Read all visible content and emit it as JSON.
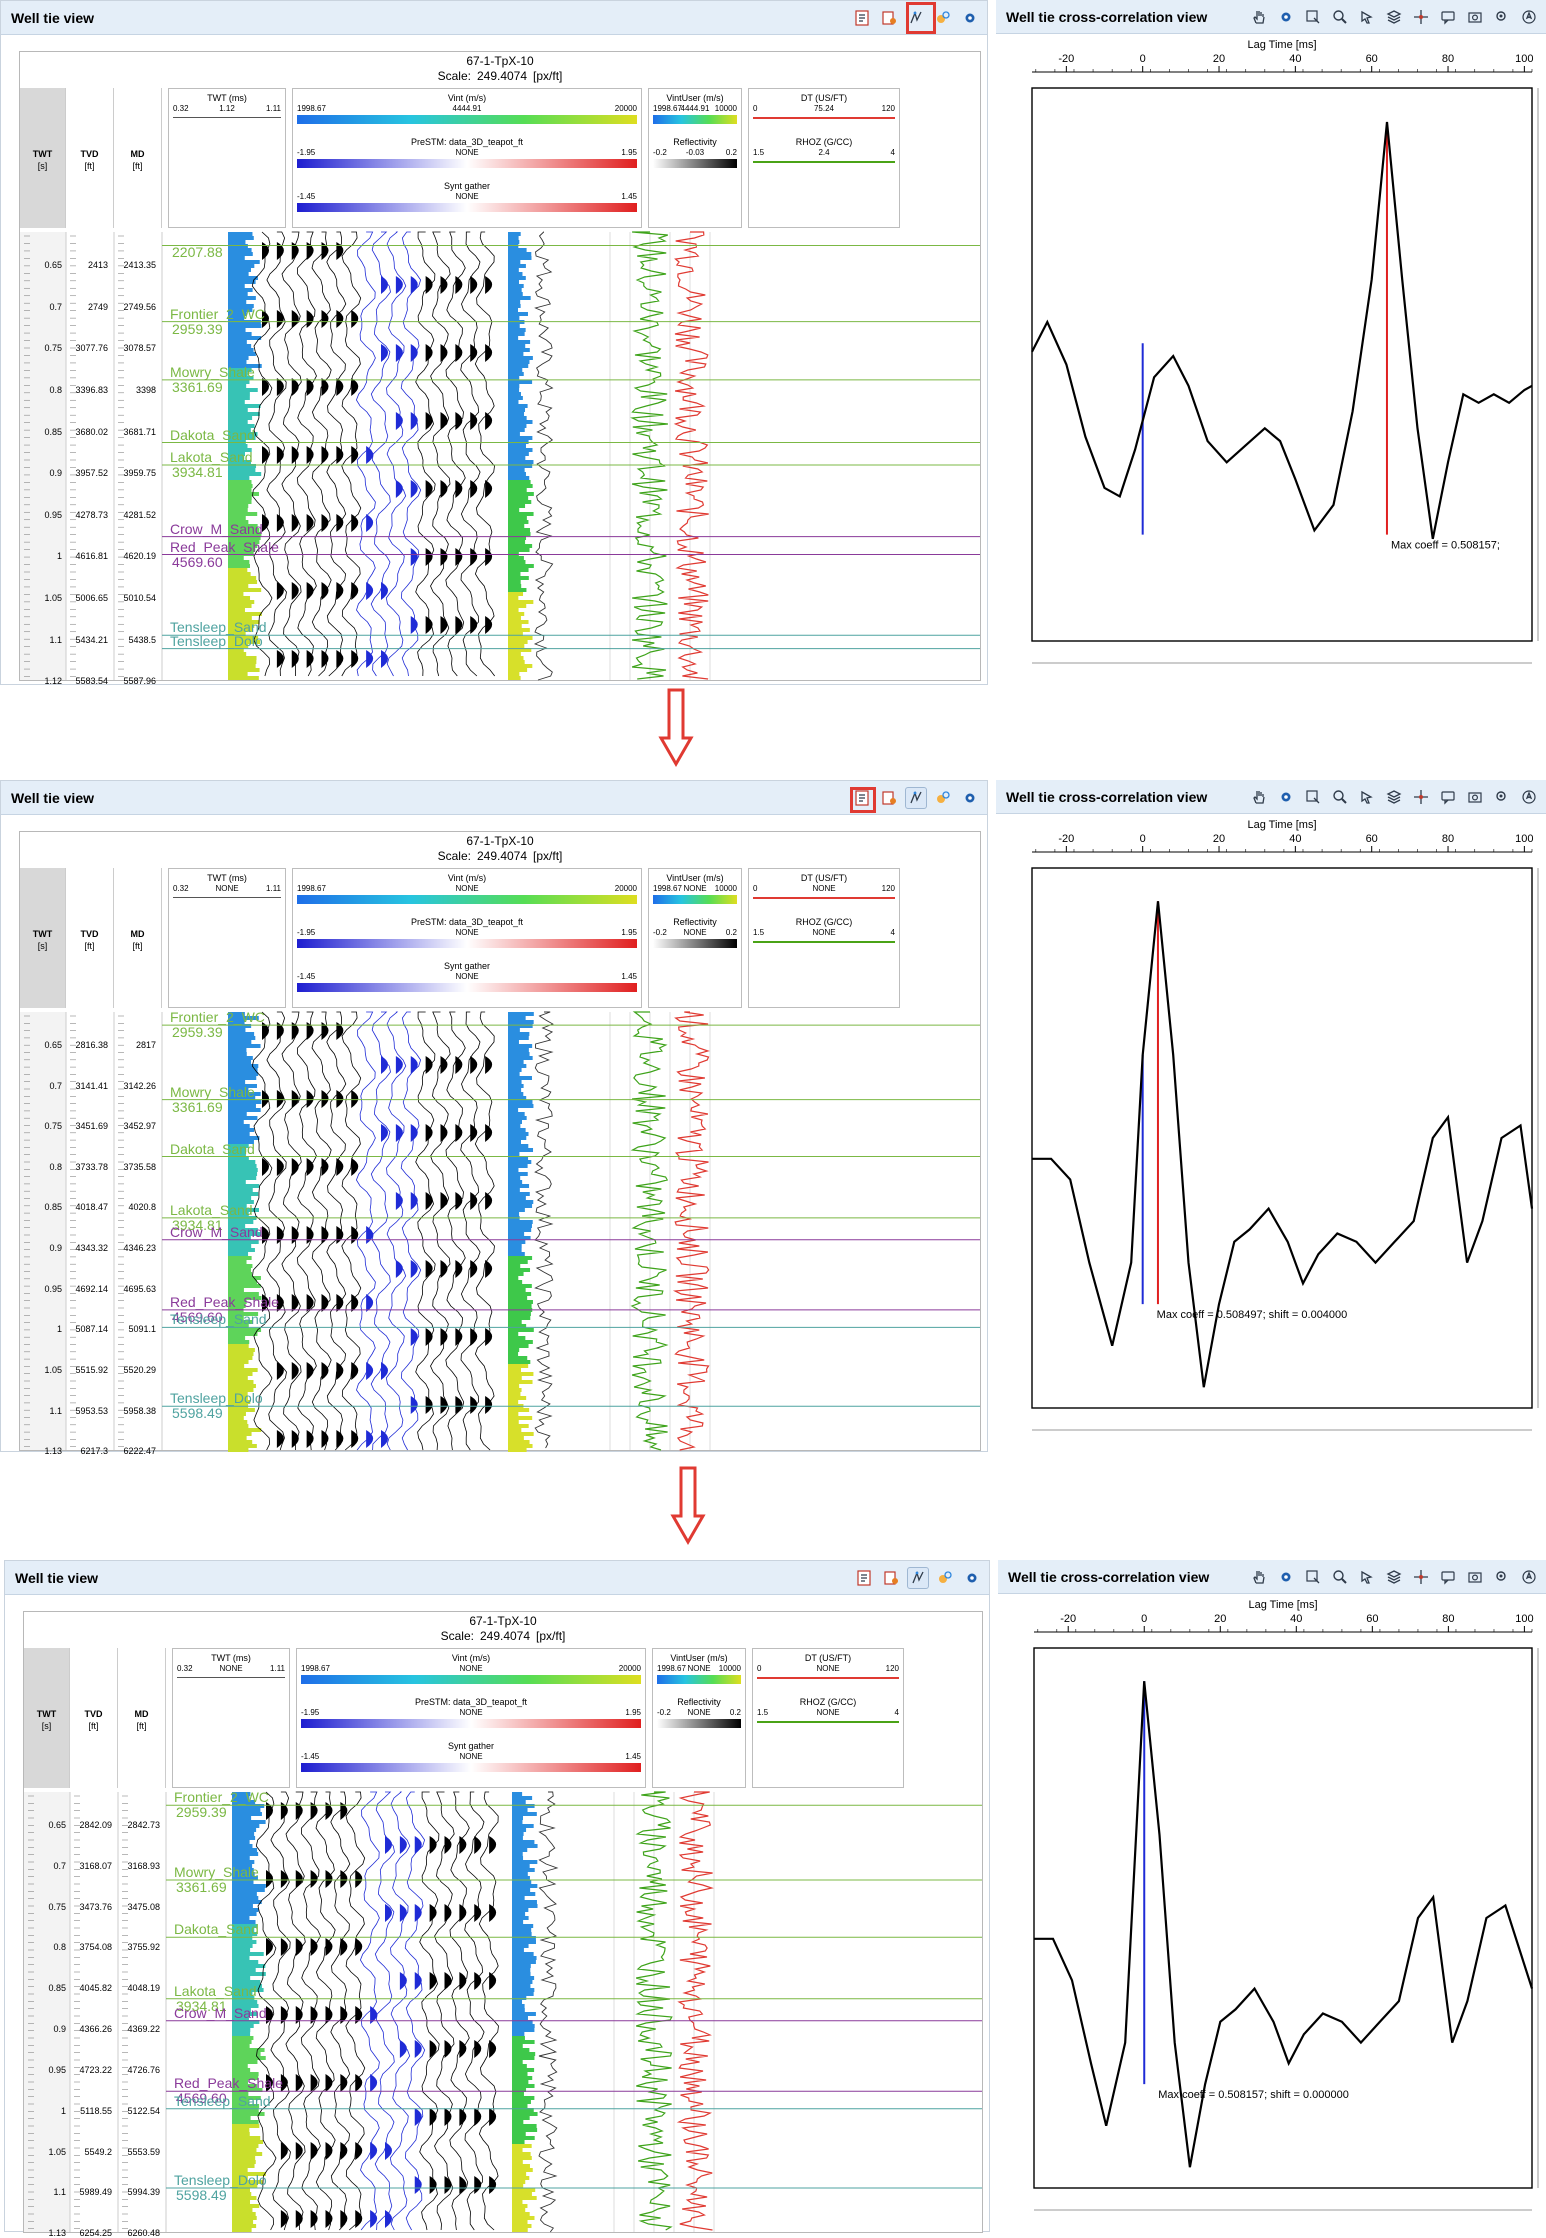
{
  "colors": {
    "accent": "#e03a32",
    "header_bg": "#e4eef8",
    "marker_green": "#7bb844",
    "marker_purple": "#8a3a9a",
    "marker_teal": "#4fa3a0",
    "cc_curve": "#000000",
    "cc_zero_line": "#1f2bd6",
    "cc_max_line": "#e02020"
  },
  "icons": {
    "toolbar_left": [
      "report-icon",
      "export-icon",
      "correlation-tool-icon",
      "match-icon",
      "settings-gear-icon"
    ],
    "toolbar_right": [
      "pan-hand-icon",
      "settings-gear-icon",
      "zoom-box-icon",
      "zoom-icon",
      "pointer-icon",
      "layers-icon",
      "crosshair-icon",
      "comment-icon",
      "snapshot-icon",
      "search-icon",
      "compass-icon"
    ]
  },
  "well_tie": {
    "title": "Well tie view",
    "well_name": "67-1-TpX-10",
    "scale_label": "Scale:",
    "scale_value": "249.4074",
    "scale_unit": "[px/ft]",
    "axis_headers": {
      "twt": [
        "TWT",
        "[s]"
      ],
      "tvd": [
        "TVD",
        "[ft]"
      ],
      "md": [
        "MD",
        "[ft]"
      ]
    },
    "tracks": {
      "twt_track": {
        "name": "TWT (ms)",
        "min": "0.32",
        "max": "1.11"
      },
      "vint": {
        "name": "Vint (m/s)",
        "min": "1998.67",
        "max": "20000"
      },
      "prestm": {
        "name": "PreSTM: data_3D_teapot_ft",
        "mid": "NONE",
        "min": "-1.95",
        "max": "1.95"
      },
      "synt": {
        "name": "Synt gather",
        "mid": "NONE",
        "min": "-1.45",
        "max": "1.45"
      },
      "vintuser": {
        "name": "VintUser (m/s)",
        "min": "1998.67",
        "max": "10000"
      },
      "reflectivity": {
        "name": "Reflectivity",
        "min": "-0.2",
        "max": "0.2"
      },
      "dt": {
        "name": "DT (US/FT)",
        "min": "0",
        "max": "120"
      },
      "rhoz": {
        "name": "RHOZ (G/CC)",
        "min": "1.5",
        "max": "4"
      }
    }
  },
  "cross_correlation": {
    "title": "Well tie cross-correlation view",
    "x_axis_label": "Lag Time [ms]",
    "x_ticks": [
      "-20",
      "0",
      "20",
      "40",
      "60",
      "80",
      "100"
    ],
    "x_tick_values": [
      -20,
      0,
      20,
      40,
      60,
      80,
      100
    ],
    "x_range": [
      -29,
      102
    ]
  },
  "steps": [
    {
      "twt_mid": "1.12",
      "vint_mid": "4444.91",
      "vintuser_mid": "4444.91",
      "refl_mid": "-0.03",
      "dt_mid": "75.24",
      "rhoz_mid": "2.4",
      "twt_labels": [
        "0.65",
        "0.7",
        "0.75",
        "0.8",
        "0.85",
        "0.9",
        "0.95",
        "1",
        "1.05",
        "1.1",
        "1.12"
      ],
      "tvd_labels": [
        "2413",
        "2749",
        "3077.76",
        "3396.83",
        "3680.02",
        "3957.52",
        "4278.73",
        "4616.81",
        "5006.65",
        "5434.21",
        "5583.54"
      ],
      "md_labels": [
        "2413.35",
        "2749.56",
        "3078.57",
        "3398",
        "3681.71",
        "3959.75",
        "4281.52",
        "4620.19",
        "5010.54",
        "5438.5",
        "5587.96"
      ],
      "markers": [
        {
          "name": "",
          "depth": "2207.88",
          "kind": "green"
        },
        {
          "name": "Frontier_2_WC",
          "depth": "2959.39",
          "kind": "green"
        },
        {
          "name": "Mowry_Shale",
          "depth": "3361.69",
          "kind": "green"
        },
        {
          "name": "Dakota_Sand",
          "depth": "",
          "kind": "green"
        },
        {
          "name": "Lakota_Sand",
          "depth": "3934.81",
          "kind": "green"
        },
        {
          "name": "Crow_M_Sand",
          "depth": "",
          "kind": "purple"
        },
        {
          "name": "Red_Peak_Shale",
          "depth": "4569.60",
          "kind": "purple"
        },
        {
          "name": "Tensleep_Sand",
          "depth": "",
          "kind": "teal"
        },
        {
          "name": "Tensleep_Dolo",
          "depth": "",
          "kind": "teal"
        }
      ],
      "cc": {
        "max_text": "Max coeff = 0.508157;",
        "max_lag_ms": 64,
        "zero_lag_ms": 0,
        "curve": [
          [
            -29,
            0.38
          ],
          [
            -25,
            0.45
          ],
          [
            -20,
            0.35
          ],
          [
            -15,
            0.18
          ],
          [
            -10,
            0.06
          ],
          [
            -6,
            0.04
          ],
          [
            -2,
            0.15
          ],
          [
            3,
            0.32
          ],
          [
            8,
            0.37
          ],
          [
            12,
            0.3
          ],
          [
            17,
            0.17
          ],
          [
            22,
            0.12
          ],
          [
            27,
            0.16
          ],
          [
            32,
            0.2
          ],
          [
            36,
            0.17
          ],
          [
            40,
            0.08
          ],
          [
            45,
            -0.04
          ],
          [
            50,
            0.02
          ],
          [
            55,
            0.24
          ],
          [
            60,
            0.55
          ],
          [
            64,
            0.92
          ],
          [
            68,
            0.55
          ],
          [
            72,
            0.2
          ],
          [
            76,
            -0.06
          ],
          [
            80,
            0.12
          ],
          [
            84,
            0.28
          ],
          [
            88,
            0.26
          ],
          [
            92,
            0.28
          ],
          [
            96,
            0.26
          ],
          [
            100,
            0.29
          ],
          [
            102,
            0.3
          ]
        ],
        "y_range": [
          -0.3,
          1.0
        ]
      }
    },
    {
      "twt_mid": "NONE",
      "vint_mid": "NONE",
      "vintuser_mid": "NONE",
      "refl_mid": "NONE",
      "dt_mid": "NONE",
      "rhoz_mid": "NONE",
      "twt_labels": [
        "0.65",
        "0.7",
        "0.75",
        "0.8",
        "0.85",
        "0.9",
        "0.95",
        "1",
        "1.05",
        "1.1",
        "1.13"
      ],
      "tvd_labels": [
        "2816.38",
        "3141.41",
        "3451.69",
        "3733.78",
        "4018.47",
        "4343.32",
        "4692.14",
        "5087.14",
        "5515.92",
        "5953.53",
        "6217.3"
      ],
      "md_labels": [
        "2817",
        "3142.26",
        "3452.97",
        "3735.58",
        "4020.8",
        "4346.23",
        "4695.63",
        "5091.1",
        "5520.29",
        "5958.38",
        "6222.47"
      ],
      "markers": [
        {
          "name": "Frontier_2_WC",
          "depth": "2959.39",
          "kind": "green"
        },
        {
          "name": "Mowry_Shale",
          "depth": "3361.69",
          "kind": "green"
        },
        {
          "name": "Dakota_Sand",
          "depth": "",
          "kind": "green"
        },
        {
          "name": "Lakota_Sand",
          "depth": "3934.81",
          "kind": "green"
        },
        {
          "name": "Crow_M_Sand",
          "depth": "",
          "kind": "purple"
        },
        {
          "name": "Red_Peak_Shale",
          "depth": "4569.60",
          "kind": "purple"
        },
        {
          "name": "Tensleep_Sand",
          "depth": "",
          "kind": "teal"
        },
        {
          "name": "Tensleep_Dolo",
          "depth": "5598.49",
          "kind": "teal"
        }
      ],
      "cc": {
        "max_text": "Max coeff = 0.508497; shift = 0.004000",
        "max_lag_ms": 4,
        "zero_lag_ms": 0,
        "curve": [
          [
            -29,
            0.3
          ],
          [
            -24,
            0.3
          ],
          [
            -19,
            0.25
          ],
          [
            -14,
            0.05
          ],
          [
            -8,
            -0.15
          ],
          [
            -3,
            0.05
          ],
          [
            0,
            0.55
          ],
          [
            4,
            0.92
          ],
          [
            8,
            0.55
          ],
          [
            12,
            0.05
          ],
          [
            16,
            -0.25
          ],
          [
            20,
            -0.05
          ],
          [
            24,
            0.1
          ],
          [
            28,
            0.13
          ],
          [
            33,
            0.18
          ],
          [
            38,
            0.1
          ],
          [
            42,
            0.0
          ],
          [
            46,
            0.07
          ],
          [
            51,
            0.12
          ],
          [
            56,
            0.1
          ],
          [
            61,
            0.05
          ],
          [
            66,
            0.1
          ],
          [
            71,
            0.15
          ],
          [
            76,
            0.35
          ],
          [
            80,
            0.4
          ],
          [
            85,
            0.05
          ],
          [
            89,
            0.15
          ],
          [
            94,
            0.35
          ],
          [
            99,
            0.38
          ],
          [
            102,
            0.18
          ]
        ],
        "y_range": [
          -0.3,
          1.0
        ]
      }
    },
    {
      "twt_mid": "NONE",
      "vint_mid": "NONE",
      "vintuser_mid": "NONE",
      "refl_mid": "NONE",
      "dt_mid": "NONE",
      "rhoz_mid": "NONE",
      "twt_labels": [
        "0.65",
        "0.7",
        "0.75",
        "0.8",
        "0.85",
        "0.9",
        "0.95",
        "1",
        "1.05",
        "1.1",
        "1.13"
      ],
      "tvd_labels": [
        "2842.09",
        "3168.07",
        "3473.76",
        "3754.08",
        "4045.82",
        "4366.26",
        "4723.22",
        "5118.55",
        "5549.2",
        "5989.49",
        "6254.25"
      ],
      "md_labels": [
        "2842.73",
        "3168.93",
        "3475.08",
        "3755.92",
        "4048.19",
        "4369.22",
        "4726.76",
        "5122.54",
        "5553.59",
        "5994.39",
        "6260.48"
      ],
      "markers": [
        {
          "name": "Frontier_2_WC",
          "depth": "2959.39",
          "kind": "green"
        },
        {
          "name": "Mowry_Shale",
          "depth": "3361.69",
          "kind": "green"
        },
        {
          "name": "Dakota_Sand",
          "depth": "",
          "kind": "green"
        },
        {
          "name": "Lakota_Sand",
          "depth": "3934.81",
          "kind": "green"
        },
        {
          "name": "Crow_M_Sand",
          "depth": "",
          "kind": "purple"
        },
        {
          "name": "Red_Peak_Shale",
          "depth": "4569.60",
          "kind": "purple"
        },
        {
          "name": "Tensleep_Sand",
          "depth": "",
          "kind": "teal"
        },
        {
          "name": "Tensleep_Dolo",
          "depth": "5598.49",
          "kind": "teal"
        }
      ],
      "cc": {
        "max_text": "Max coeff = 0.508157; shift = 0.000000",
        "max_lag_ms": 0,
        "zero_lag_ms": 0,
        "curve": [
          [
            -29,
            0.3
          ],
          [
            -24,
            0.3
          ],
          [
            -19,
            0.2
          ],
          [
            -14,
            0.0
          ],
          [
            -10,
            -0.15
          ],
          [
            -5,
            0.05
          ],
          [
            0,
            0.92
          ],
          [
            4,
            0.55
          ],
          [
            8,
            0.05
          ],
          [
            12,
            -0.25
          ],
          [
            16,
            -0.05
          ],
          [
            20,
            0.1
          ],
          [
            24,
            0.13
          ],
          [
            29,
            0.18
          ],
          [
            34,
            0.1
          ],
          [
            38,
            0.0
          ],
          [
            42,
            0.07
          ],
          [
            47,
            0.12
          ],
          [
            52,
            0.1
          ],
          [
            57,
            0.05
          ],
          [
            62,
            0.1
          ],
          [
            67,
            0.15
          ],
          [
            72,
            0.35
          ],
          [
            76,
            0.4
          ],
          [
            81,
            0.05
          ],
          [
            85,
            0.15
          ],
          [
            90,
            0.35
          ],
          [
            95,
            0.38
          ],
          [
            102,
            0.18
          ]
        ],
        "y_range": [
          -0.3,
          1.0
        ]
      }
    }
  ]
}
